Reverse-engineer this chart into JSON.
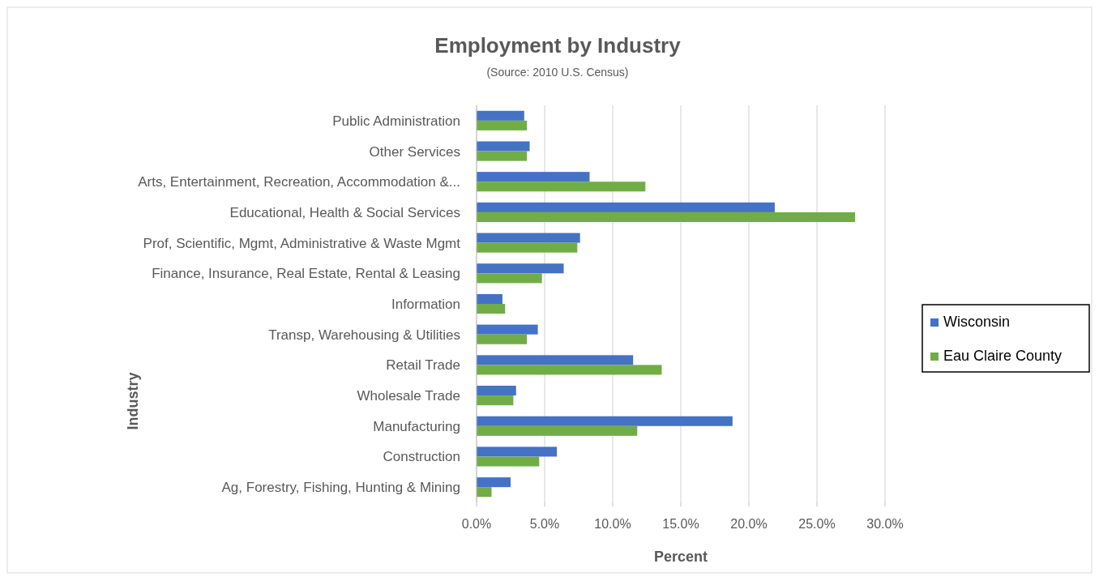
{
  "chart_data": {
    "type": "bar",
    "orientation": "horizontal",
    "title": "Employment by Industry",
    "subtitle": "(Source: 2010 U.S. Census)",
    "xlabel": "Percent",
    "ylabel": "Industry",
    "categories": [
      "Public Administration",
      "Other Services",
      "Arts, Entertainment, Recreation, Accommodation &...",
      "Educational, Health & Social Services",
      "Prof, Scientific, Mgmt, Administrative & Waste Mgmt",
      "Finance, Insurance, Real Estate, Rental & Leasing",
      "Information",
      "Transp, Warehousing & Utilities",
      "Retail Trade",
      "Wholesale Trade",
      "Manufacturing",
      "Construction",
      "Ag, Forestry, Fishing, Hunting & Mining"
    ],
    "series": [
      {
        "name": "Wisconsin",
        "color": "#4472c4",
        "values": [
          3.5,
          3.9,
          8.3,
          21.9,
          7.6,
          6.4,
          1.9,
          4.5,
          11.5,
          2.9,
          18.8,
          5.9,
          2.5
        ]
      },
      {
        "name": "Eau Claire County",
        "color": "#70ad47",
        "values": [
          3.7,
          3.7,
          12.4,
          27.8,
          7.4,
          4.8,
          2.1,
          3.7,
          13.6,
          2.7,
          11.8,
          4.6,
          1.1
        ]
      }
    ],
    "xlim": [
      0,
      30
    ],
    "xticks": [
      {
        "value": 0,
        "label": "0.0%"
      },
      {
        "value": 5,
        "label": "5.0%"
      },
      {
        "value": 10,
        "label": "10.0%"
      },
      {
        "value": 15,
        "label": "15.0%"
      },
      {
        "value": 20,
        "label": "20.0%"
      },
      {
        "value": 25,
        "label": "25.0%"
      },
      {
        "value": 30,
        "label": "30.0%"
      }
    ],
    "grid": "x",
    "legend": "right"
  }
}
